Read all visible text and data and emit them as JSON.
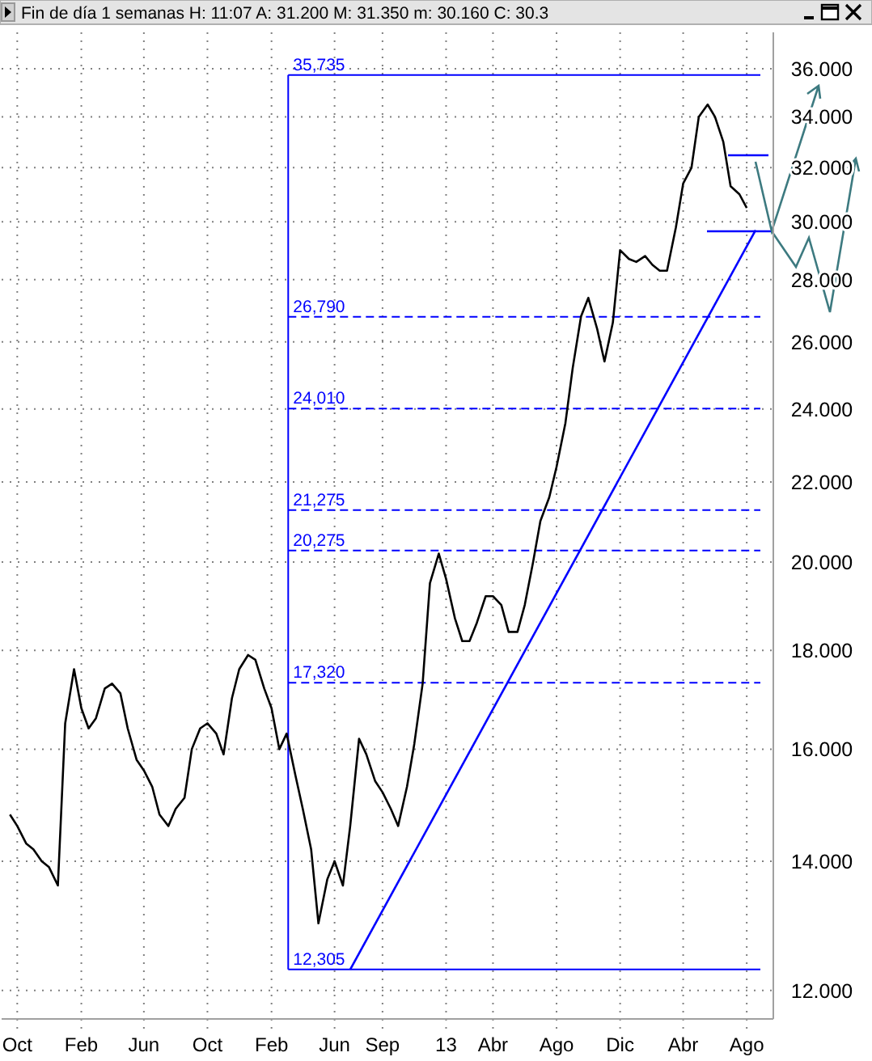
{
  "chart_data": {
    "type": "line",
    "title": "Fin de día 1 semanas  H: 11:07  A: 31.200  M: 31.350  m: 30.160  C: 30.3",
    "x": [
      "2010-10-01",
      "2010-10-15",
      "2010-11-01",
      "2010-11-15",
      "2010-12-01",
      "2010-12-15",
      "2011-01-01",
      "2011-01-15",
      "2011-02-01",
      "2011-02-15",
      "2011-03-01",
      "2011-03-15",
      "2011-04-01",
      "2011-04-15",
      "2011-05-01",
      "2011-05-15",
      "2011-06-01",
      "2011-06-15",
      "2011-07-01",
      "2011-07-15",
      "2011-08-01",
      "2011-08-15",
      "2011-09-01",
      "2011-09-15",
      "2011-10-01",
      "2011-10-15",
      "2011-11-01",
      "2011-11-15",
      "2011-12-01",
      "2011-12-15",
      "2012-01-01",
      "2012-01-15",
      "2012-02-01",
      "2012-02-15",
      "2012-03-01",
      "2012-03-15",
      "2012-04-01",
      "2012-04-15",
      "2012-05-01",
      "2012-05-15",
      "2012-06-01",
      "2012-06-15",
      "2012-07-01",
      "2012-07-15",
      "2012-08-01",
      "2012-08-15",
      "2012-09-01",
      "2012-09-15",
      "2012-10-01",
      "2012-10-15",
      "2012-11-01",
      "2012-11-15",
      "2012-12-01",
      "2012-12-15",
      "2013-01-01",
      "2013-01-15",
      "2013-02-01",
      "2013-02-15",
      "2013-03-01",
      "2013-03-15",
      "2013-04-01",
      "2013-04-15",
      "2013-05-01",
      "2013-05-15",
      "2013-06-01",
      "2013-06-15",
      "2013-07-01",
      "2013-07-15",
      "2013-08-01",
      "2013-08-15",
      "2013-09-01",
      "2013-09-15",
      "2013-10-01",
      "2013-10-15",
      "2013-11-01",
      "2013-11-15",
      "2013-12-01",
      "2013-12-15",
      "2014-01-01",
      "2014-01-15",
      "2014-02-01",
      "2014-02-15",
      "2014-03-01",
      "2014-03-15",
      "2014-04-01",
      "2014-04-15",
      "2014-05-01",
      "2014-05-15",
      "2014-06-01",
      "2014-06-15",
      "2014-07-01",
      "2014-07-15",
      "2014-08-01",
      "2014-08-15"
    ],
    "series": [
      {
        "color": "#000000",
        "values": [
          14.8,
          14.6,
          14.3,
          14.2,
          14.0,
          13.9,
          13.6,
          16.5,
          17.6,
          16.8,
          16.4,
          16.6,
          17.2,
          17.3,
          17.1,
          16.4,
          15.8,
          15.6,
          15.3,
          14.8,
          14.6,
          14.9,
          15.1,
          16.0,
          16.4,
          16.5,
          16.3,
          15.9,
          17.0,
          17.6,
          17.9,
          17.8,
          17.2,
          16.8,
          16.0,
          16.3,
          15.5,
          14.9,
          14.2,
          13.0,
          13.7,
          14.0,
          13.6,
          14.6,
          16.2,
          15.9,
          15.4,
          15.2,
          14.9,
          14.6,
          15.3,
          16.1,
          17.3,
          19.5,
          20.2,
          19.6,
          18.7,
          18.2,
          18.2,
          18.6,
          19.2,
          19.2,
          19.0,
          18.4,
          18.4,
          19.0,
          20.0,
          21.0,
          21.6,
          22.4,
          23.6,
          25.2,
          26.8,
          27.4,
          26.4,
          25.4,
          26.6,
          29.0,
          28.7,
          28.6,
          28.8,
          28.5,
          28.3,
          28.3,
          29.8,
          31.4,
          32.0,
          34.0,
          34.5,
          34.0,
          33.0,
          31.3,
          31.0,
          30.5
        ]
      },
      {
        "type": "line",
        "color": "#0000ff",
        "x": [
          "2012-07-15",
          "2014-09-01"
        ],
        "values": [
          12.305,
          29.7
        ]
      }
    ],
    "xlim": [
      "2010-09-15",
      "2014-10-05"
    ],
    "xticks": [
      {
        "value": "2010-10-15",
        "label": "Oct"
      },
      {
        "value": "2011-02-15",
        "label": "Feb"
      },
      {
        "value": "2011-06-15",
        "label": "Jun"
      },
      {
        "value": "2011-10-15",
        "label": "Oct"
      },
      {
        "value": "2012-02-15",
        "label": "Feb"
      },
      {
        "value": "2012-06-15",
        "label": "Jun"
      },
      {
        "value": "2012-09-15",
        "label": "Sep"
      },
      {
        "value": "2013-01-15",
        "label": "13"
      },
      {
        "value": "2013-04-15",
        "label": "Abr"
      },
      {
        "value": "2013-08-15",
        "label": "Ago"
      },
      {
        "value": "2013-12-15",
        "label": "Dic"
      },
      {
        "value": "2014-04-15",
        "label": "Abr"
      },
      {
        "value": "2014-08-15",
        "label": "Ago"
      }
    ],
    "ylim": [
      11.6,
      37.6
    ],
    "log": true,
    "yticks": [
      {
        "value": 12,
        "label": "12.000"
      },
      {
        "value": 14,
        "label": "14.000"
      },
      {
        "value": 16,
        "label": "16.000"
      },
      {
        "value": 18,
        "label": "18.000"
      },
      {
        "value": 20,
        "label": "20.000"
      },
      {
        "value": 22,
        "label": "22.000"
      },
      {
        "value": 24,
        "label": "24.000"
      },
      {
        "value": 26,
        "label": "26.000"
      },
      {
        "value": 28,
        "label": "28.000"
      },
      {
        "value": 30,
        "label": "30.000"
      },
      {
        "value": 32,
        "label": "32.000"
      },
      {
        "value": 34,
        "label": "34.000"
      },
      {
        "value": 36,
        "label": "36.000"
      }
    ],
    "grid": true,
    "ref_lines": [
      {
        "axis": "x",
        "value": "2012-03-18",
        "color": "#0000ff",
        "line_style": "solid"
      },
      {
        "axis": "y",
        "value": 35.735,
        "label": "35,735",
        "color": "#0000ff",
        "line_style": "solid"
      },
      {
        "axis": "y",
        "value": 26.79,
        "label": "26,790",
        "color": "#0000ff",
        "line_style": "dashed"
      },
      {
        "axis": "y",
        "value": 24.01,
        "label": "24,010",
        "color": "#0000ff",
        "line_style": "dashed"
      },
      {
        "axis": "y",
        "value": 21.275,
        "label": "21,275",
        "color": "#0000ff",
        "line_style": "dashed"
      },
      {
        "axis": "y",
        "value": 20.275,
        "label": "20,275",
        "color": "#0000ff",
        "line_style": "dashed"
      },
      {
        "axis": "y",
        "value": 17.32,
        "label": "17,320",
        "color": "#0000ff",
        "line_style": "dashed"
      },
      {
        "axis": "y",
        "value": 12.305,
        "label": "12,305",
        "color": "#0000ff",
        "line_style": "solid"
      }
    ]
  }
}
